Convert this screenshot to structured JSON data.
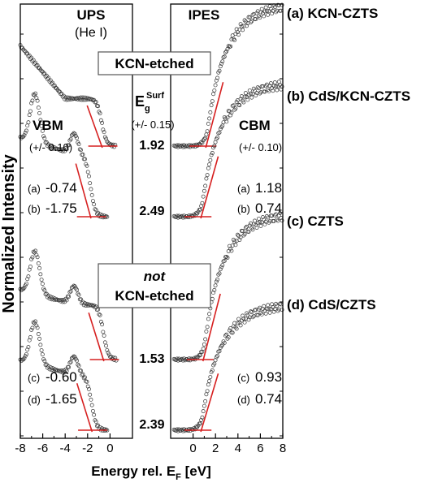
{
  "chart_data": {
    "type": "scatter",
    "ylabel": "Normalized Intensity",
    "xlabel_prefix": "Energy rel. E",
    "xlabel_sub": "F",
    "xlabel_suffix": " [eV]",
    "left_panel": {
      "title": "UPS",
      "subtitle": "(He I)",
      "xlim": [
        -8,
        2
      ],
      "ticks": [
        -8,
        -6,
        -4,
        -2,
        0
      ]
    },
    "right_panel": {
      "title": "IPES",
      "xlim": [
        -2,
        8
      ],
      "ticks": [
        0,
        2,
        4,
        6,
        8
      ]
    },
    "series": [
      {
        "name": "(a) KCN-CZTS",
        "vbm": -0.74,
        "cbm": 1.18
      },
      {
        "name": "(b) CdS/KCN-CZTS",
        "vbm": -1.75,
        "cbm": 0.74
      },
      {
        "name": "(c) CZTS",
        "vbm": -0.6,
        "cbm": 0.93
      },
      {
        "name": "(d) CdS/CZTS",
        "vbm": -1.65,
        "cbm": 0.74
      }
    ],
    "gaps": [
      "1.92",
      "2.49",
      "1.53",
      "2.39"
    ],
    "eg_label": "E",
    "eg_sub": "g",
    "eg_sup": "Surf",
    "eg_err": "(+/- 0.15)",
    "vbm_label": "VBM",
    "vbm_err": "(+/- 0.10)",
    "cbm_label": "CBM",
    "cbm_err": "(+/- 0.10)",
    "box_top": "KCN-etched",
    "box_bottom_line1": "not",
    "box_bottom_line2": "KCN-etched",
    "vbm_values": [
      {
        "tag": "(a)",
        "value": "-0.74"
      },
      {
        "tag": "(b)",
        "value": "-1.75"
      },
      {
        "tag": "(c)",
        "value": "-0.60"
      },
      {
        "tag": "(d)",
        "value": "-1.65"
      }
    ],
    "cbm_values": [
      {
        "tag": "(a)",
        "value": "1.18"
      },
      {
        "tag": "(b)",
        "value": "0.74"
      },
      {
        "tag": "(c)",
        "value": "0.93"
      },
      {
        "tag": "(d)",
        "value": "0.74"
      }
    ],
    "marker_color": "#333333",
    "fit_color": "#d62020"
  }
}
